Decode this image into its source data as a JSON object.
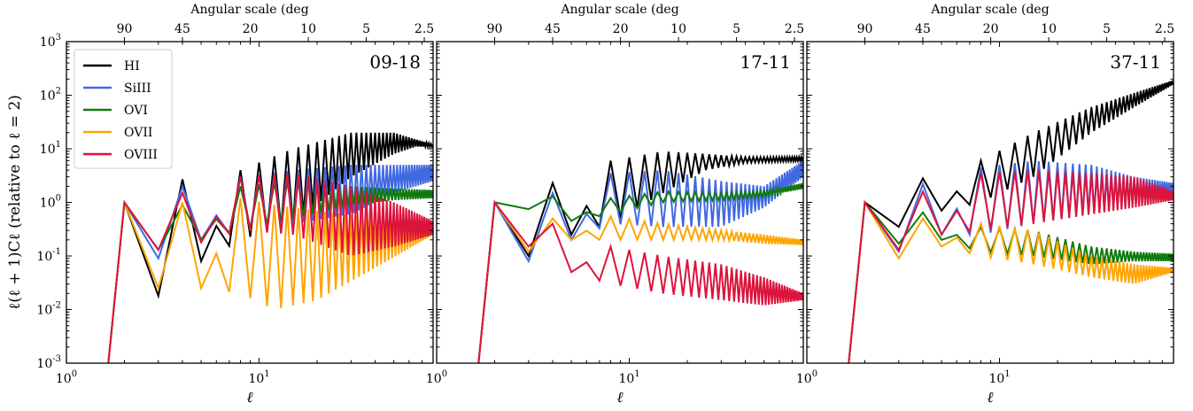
{
  "chart_data": {
    "type": "line",
    "xscale": "log",
    "yscale": "log",
    "xlim": [
      1,
      80
    ],
    "ylim": [
      0.001,
      1000
    ],
    "xlabel": "ℓ",
    "ylabel": "ℓ(ℓ + 1)Cℓ (relative to ℓ = 2)",
    "top_axis_label": "Angular scale (deg",
    "top_ticks": [
      90,
      45,
      20,
      10,
      5,
      2.5
    ],
    "top_tick_labels": [
      "90",
      "45",
      "20",
      "10",
      "5",
      "2.5"
    ],
    "x_tick_labels": [
      "10^0",
      "10^1"
    ],
    "y_tick_labels": [
      "10^-3",
      "10^-2",
      "10^-1",
      "10^0",
      "10^1",
      "10^2",
      "10^3"
    ],
    "legend": {
      "placement": "top-left",
      "entries": [
        "HI",
        "SiIII",
        "OVI",
        "OVII",
        "OVIII"
      ]
    },
    "colors": {
      "HI": "#000000",
      "SiIII": "#4169e1",
      "OVI": "#107a10",
      "OVII": "#ffa500",
      "OVIII": "#dc143c"
    },
    "panels": [
      {
        "label": "09-18",
        "series": [
          {
            "name": "HI",
            "start": {
              "x": 1.65,
              "y": 0.001
            },
            "envelope": [
              [
                2,
                1,
                1
              ],
              [
                3,
                0.018,
                0.018
              ],
              [
                4,
                2.7,
                2.7
              ],
              [
                5,
                0.08,
                0.08
              ],
              [
                8,
                4,
                0.2
              ],
              [
                15,
                10,
                0.4
              ],
              [
                30,
                20,
                3
              ],
              [
                50,
                20,
                8
              ],
              [
                65,
                15,
                11
              ],
              [
                80,
                12,
                11
              ]
            ]
          },
          {
            "name": "SiIII",
            "start": {
              "x": 1.65,
              "y": 0.001
            },
            "envelope": [
              [
                2,
                1,
                1
              ],
              [
                3,
                0.09,
                0.09
              ],
              [
                4,
                2.0,
                2.0
              ],
              [
                5,
                0.2,
                0.2
              ],
              [
                8,
                3,
                0.3
              ],
              [
                15,
                4,
                0.4
              ],
              [
                30,
                5,
                0.6
              ],
              [
                50,
                5,
                1.5
              ],
              [
                80,
                5,
                2.5
              ]
            ]
          },
          {
            "name": "OVI",
            "start": {
              "x": 1.65,
              "y": 0.001
            },
            "envelope": [
              [
                2,
                1,
                1
              ],
              [
                3,
                0.13,
                0.13
              ],
              [
                4,
                0.9,
                0.9
              ],
              [
                5,
                0.2,
                0.2
              ],
              [
                8,
                2,
                0.3
              ],
              [
                15,
                2.5,
                0.5
              ],
              [
                30,
                2,
                0.9
              ],
              [
                50,
                1.8,
                1.1
              ],
              [
                80,
                1.7,
                1.2
              ]
            ]
          },
          {
            "name": "OVII",
            "start": {
              "x": 1.65,
              "y": 0.001
            },
            "envelope": [
              [
                2,
                1,
                1
              ],
              [
                3,
                0.025,
                0.025
              ],
              [
                4,
                1.0,
                1.0
              ],
              [
                5,
                0.025,
                0.025
              ],
              [
                8,
                1.2,
                0.02
              ],
              [
                12,
                0.9,
                0.01
              ],
              [
                20,
                0.7,
                0.015
              ],
              [
                40,
                0.5,
                0.06
              ],
              [
                80,
                0.35,
                0.25
              ]
            ]
          },
          {
            "name": "OVIII",
            "start": {
              "x": 1.65,
              "y": 0.001
            },
            "envelope": [
              [
                2,
                1,
                1
              ],
              [
                3,
                0.13,
                0.13
              ],
              [
                4,
                1.5,
                1.5
              ],
              [
                5,
                0.18,
                0.18
              ],
              [
                8,
                3,
                0.3
              ],
              [
                15,
                3.5,
                0.25
              ],
              [
                30,
                2,
                0.1
              ],
              [
                50,
                1,
                0.15
              ],
              [
                80,
                0.45,
                0.25
              ]
            ]
          }
        ]
      },
      {
        "label": "17-11",
        "series": [
          {
            "name": "HI",
            "start": {
              "x": 1.65,
              "y": 0.001
            },
            "envelope": [
              [
                2,
                1,
                1
              ],
              [
                3,
                0.1,
                0.1
              ],
              [
                4,
                2.3,
                2.3
              ],
              [
                5,
                0.25,
                0.25
              ],
              [
                8,
                6,
                0.4
              ],
              [
                15,
                9,
                1.5
              ],
              [
                25,
                8,
                4
              ],
              [
                40,
                7,
                5.5
              ],
              [
                80,
                7,
                6
              ]
            ]
          },
          {
            "name": "SiIII",
            "start": {
              "x": 1.65,
              "y": 0.001
            },
            "envelope": [
              [
                2,
                1,
                1
              ],
              [
                3,
                0.08,
                0.08
              ],
              [
                4,
                1.5,
                1.5
              ],
              [
                5,
                0.2,
                0.2
              ],
              [
                8,
                3.5,
                0.4
              ],
              [
                15,
                4,
                0.35
              ],
              [
                30,
                2.5,
                0.35
              ],
              [
                50,
                2,
                0.8
              ],
              [
                80,
                6,
                3
              ]
            ]
          },
          {
            "name": "OVI",
            "start": {
              "x": 1.65,
              "y": 0.001
            },
            "envelope": [
              [
                2,
                1,
                1
              ],
              [
                3,
                0.75,
                0.75
              ],
              [
                4,
                1.3,
                1.3
              ],
              [
                5,
                0.45,
                0.45
              ],
              [
                8,
                1.2,
                0.6
              ],
              [
                15,
                1.6,
                1.0
              ],
              [
                30,
                1.5,
                1.1
              ],
              [
                50,
                1.6,
                1.3
              ],
              [
                80,
                2.3,
                1.8
              ]
            ]
          },
          {
            "name": "OVII",
            "start": {
              "x": 1.65,
              "y": 0.001
            },
            "envelope": [
              [
                2,
                1,
                1
              ],
              [
                3,
                0.12,
                0.12
              ],
              [
                4,
                0.5,
                0.5
              ],
              [
                5,
                0.2,
                0.2
              ],
              [
                8,
                0.55,
                0.2
              ],
              [
                15,
                0.4,
                0.2
              ],
              [
                30,
                0.3,
                0.2
              ],
              [
                50,
                0.25,
                0.17
              ],
              [
                80,
                0.2,
                0.16
              ]
            ]
          },
          {
            "name": "OVIII",
            "start": {
              "x": 1.65,
              "y": 0.001
            },
            "envelope": [
              [
                2,
                1,
                1
              ],
              [
                3,
                0.15,
                0.15
              ],
              [
                4,
                0.4,
                0.4
              ],
              [
                5,
                0.05,
                0.05
              ],
              [
                8,
                0.15,
                0.03
              ],
              [
                15,
                0.1,
                0.02
              ],
              [
                30,
                0.07,
                0.015
              ],
              [
                50,
                0.04,
                0.012
              ],
              [
                80,
                0.02,
                0.015
              ]
            ]
          }
        ]
      },
      {
        "label": "37-11",
        "series": [
          {
            "name": "HI",
            "start": {
              "x": 1.65,
              "y": 0.001
            },
            "envelope": [
              [
                2,
                1,
                1
              ],
              [
                3,
                0.35,
                0.35
              ],
              [
                4,
                2.8,
                2.8
              ],
              [
                5,
                0.7,
                0.7
              ],
              [
                8,
                6,
                1
              ],
              [
                15,
                20,
                3
              ],
              [
                30,
                60,
                20
              ],
              [
                50,
                110,
                60
              ],
              [
                80,
                190,
                160
              ]
            ]
          },
          {
            "name": "SiIII",
            "start": {
              "x": 1.65,
              "y": 0.001
            },
            "envelope": [
              [
                2,
                1,
                1
              ],
              [
                3,
                0.12,
                0.12
              ],
              [
                4,
                2.2,
                2.2
              ],
              [
                5,
                0.25,
                0.25
              ],
              [
                8,
                4.5,
                0.25
              ],
              [
                15,
                6,
                0.4
              ],
              [
                30,
                5,
                0.6
              ],
              [
                50,
                3,
                0.9
              ],
              [
                80,
                2.3,
                1.3
              ]
            ]
          },
          {
            "name": "OVI",
            "start": {
              "x": 1.65,
              "y": 0.001
            },
            "envelope": [
              [
                2,
                1,
                1
              ],
              [
                3,
                0.17,
                0.17
              ],
              [
                4,
                0.65,
                0.65
              ],
              [
                5,
                0.2,
                0.2
              ],
              [
                8,
                0.35,
                0.12
              ],
              [
                15,
                0.3,
                0.1
              ],
              [
                30,
                0.15,
                0.07
              ],
              [
                50,
                0.12,
                0.08
              ],
              [
                80,
                0.11,
                0.08
              ]
            ]
          },
          {
            "name": "OVII",
            "start": {
              "x": 1.65,
              "y": 0.001
            },
            "envelope": [
              [
                2,
                1,
                1
              ],
              [
                3,
                0.09,
                0.09
              ],
              [
                4,
                0.5,
                0.5
              ],
              [
                5,
                0.15,
                0.15
              ],
              [
                8,
                0.4,
                0.1
              ],
              [
                15,
                0.3,
                0.07
              ],
              [
                30,
                0.1,
                0.04
              ],
              [
                50,
                0.07,
                0.03
              ],
              [
                80,
                0.06,
                0.05
              ]
            ]
          },
          {
            "name": "OVIII",
            "start": {
              "x": 1.65,
              "y": 0.001
            },
            "envelope": [
              [
                2,
                1,
                1
              ],
              [
                3,
                0.13,
                0.13
              ],
              [
                4,
                1.6,
                1.6
              ],
              [
                5,
                0.25,
                0.25
              ],
              [
                8,
                3.5,
                0.3
              ],
              [
                15,
                4,
                0.4
              ],
              [
                30,
                3.5,
                0.6
              ],
              [
                50,
                3,
                0.8
              ],
              [
                80,
                1.6,
                1.1
              ]
            ]
          }
        ]
      }
    ]
  }
}
